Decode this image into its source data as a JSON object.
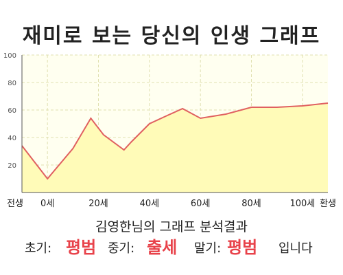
{
  "title": "재미로 보는 당신의 인생 그래프",
  "analysis_label": "김영한님의 그래프 분석결과",
  "summary": {
    "early_label": "초기:",
    "early_value": "평범",
    "middle_label": "중기:",
    "middle_value": "출세",
    "late_label": "말기:",
    "late_value": "평범",
    "ending": "입니다"
  },
  "colors": {
    "fill": "#fffbb8",
    "line": "#e06060",
    "background": "#fffff0",
    "grid": "#e0e0b0",
    "accent": "#e8424a"
  },
  "chart_data": {
    "type": "area",
    "x_categories": [
      "전생",
      "0세",
      "20세",
      "40세",
      "60세",
      "80세",
      "100세",
      "환생"
    ],
    "y_ticks": [
      20,
      40,
      60,
      80,
      100
    ],
    "ylim": [
      0,
      100
    ],
    "grid": true,
    "series": [
      {
        "x": [
          -10,
          0,
          10,
          17,
          22,
          30,
          33,
          40,
          47,
          53,
          60,
          70,
          80,
          90,
          100,
          110
        ],
        "values": [
          34,
          10,
          32,
          54,
          42,
          31,
          37,
          50,
          56,
          61,
          54,
          57,
          62,
          62,
          63,
          65
        ]
      }
    ]
  }
}
